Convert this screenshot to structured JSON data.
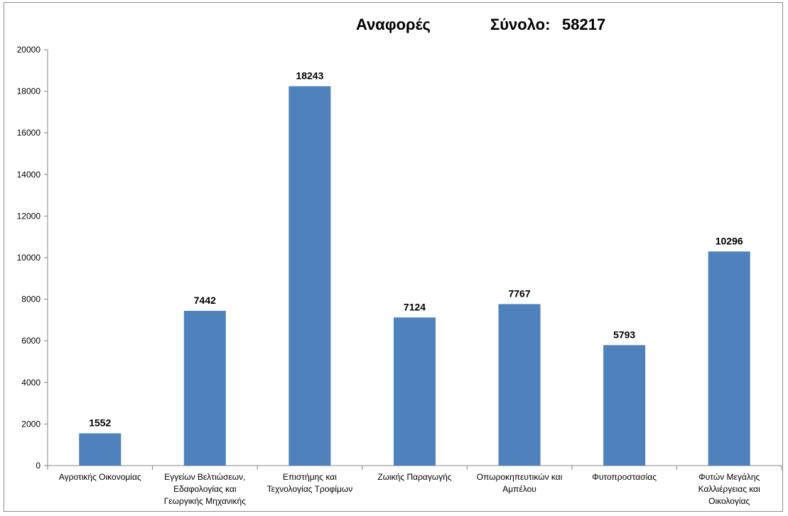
{
  "title": {
    "main": "Αναφορές",
    "total_label": "Σύνολο:",
    "total_value": "58217"
  },
  "colors": {
    "bar": "#4f81bd",
    "axis": "#868686"
  },
  "chart_data": {
    "type": "bar",
    "title": "Αναφορές Σύνολο: 58217",
    "xlabel": "",
    "ylabel": "",
    "ylim": [
      0,
      20000
    ],
    "yticks": [
      0,
      2000,
      4000,
      6000,
      8000,
      10000,
      12000,
      14000,
      16000,
      18000,
      20000
    ],
    "grid": false,
    "categories": [
      "Αγροτικής Οικονομίας",
      "Εγγείων Βελτιώσεων, Εδαφολογίας και Γεωργικής Μηχανικής",
      "Επιστήμης και Τεχνολογίας Τροφίμων",
      "Ζωικής Παραγωγής",
      "Οπωροκηπευτικών και Αμπέλου",
      "Φυτοπροστασίας",
      "Φυτών Μεγάλης Καλλιέργειας και Οικολογίας"
    ],
    "category_lines": [
      [
        "Αγροτικής Οικονομίας"
      ],
      [
        "Εγγείων Βελτιώσεων,",
        "Εδαφολογίας και",
        "Γεωργικής Μηχανικής"
      ],
      [
        "Επιστήμης και",
        "Τεχνολογίας Τροφίμων"
      ],
      [
        "Ζωικής Παραγωγής"
      ],
      [
        "Οπωροκηπευτικών και",
        "Αμπέλου"
      ],
      [
        "Φυτοπροστασίας"
      ],
      [
        "Φυτών Μεγάλης",
        "Καλλιέργειας και",
        "Οικολογίας"
      ]
    ],
    "values": [
      1552,
      7442,
      18243,
      7124,
      7767,
      5793,
      10296
    ]
  }
}
